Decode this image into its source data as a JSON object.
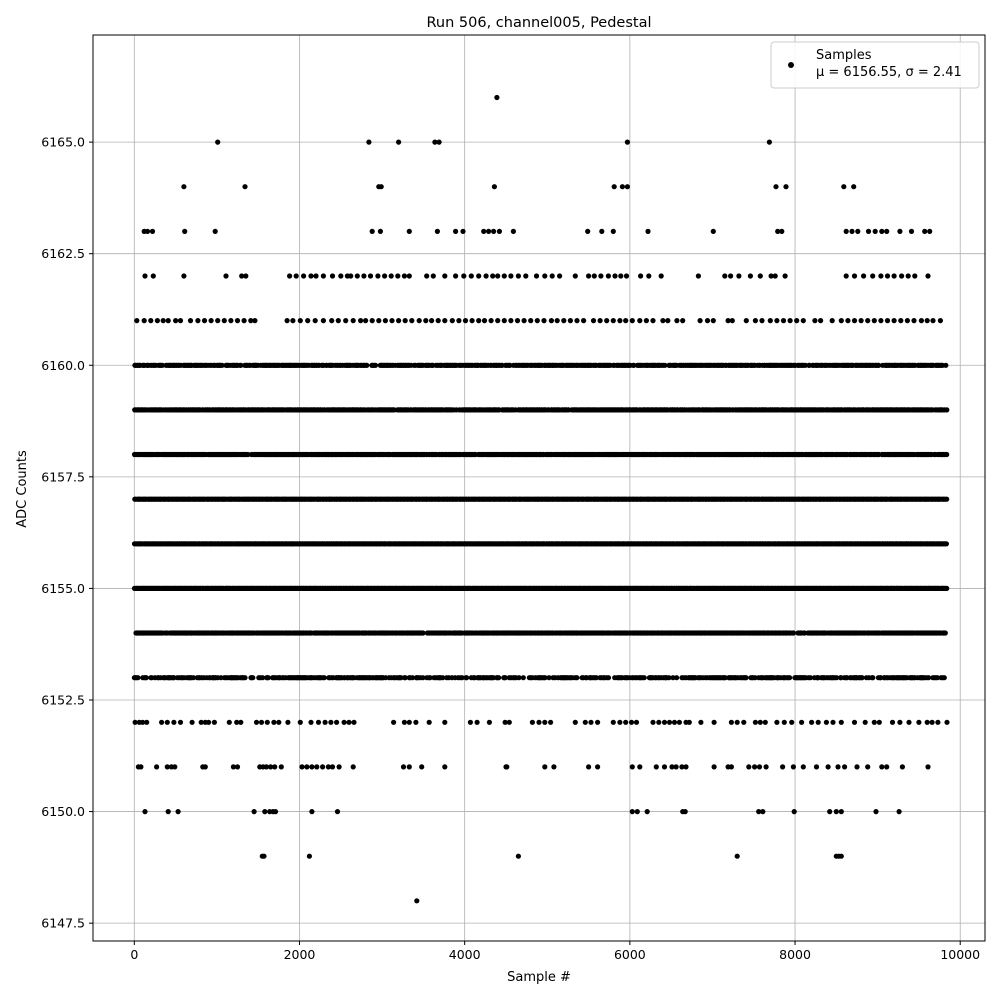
{
  "chart_data": {
    "type": "scatter",
    "title": "Run 506, channel005, Pedestal",
    "xlabel": "Sample #",
    "ylabel": "ADC Counts",
    "xlim": [
      -500,
      10300
    ],
    "ylim": [
      6147.1,
      6167.4
    ],
    "x_ticks": [
      0,
      2000,
      4000,
      6000,
      8000,
      10000
    ],
    "y_ticks": [
      6147.5,
      6150.0,
      6152.5,
      6155.0,
      6157.5,
      6160.0,
      6162.5,
      6165.0
    ],
    "grid": true,
    "legend": {
      "placement": "top-right",
      "label": "Samples",
      "stats": "μ = 6156.55, σ = 2.41"
    },
    "series": [
      {
        "name": "Samples",
        "color": "#000000",
        "n_samples": 9840,
        "levels": [
          {
            "y": 6147.999999,
            "x": [
              3420
            ]
          },
          {
            "y": 6149,
            "x": [
              1550,
              1570,
              2120,
              4650,
              7300,
              8500,
              8530,
              8560
            ]
          },
          {
            "y": 6150,
            "x": [
              130,
              410,
              530,
              1450,
              1580,
              1640,
              1680,
              1710,
              2150,
              2460,
              6030,
              6090,
              6210,
              6640,
              6670,
              7560,
              7610,
              7990,
              8420,
              8500,
              8560,
              8980,
              9260
            ]
          },
          {
            "y": 6151,
            "x": [
              50,
              80,
              270,
              400,
              450,
              490,
              830,
              860,
              1200,
              1250,
              1520,
              1560,
              1600,
              1650,
              1700,
              1780,
              2030,
              2090,
              2150,
              2210,
              2280,
              2350,
              2400,
              2480,
              2650,
              3260,
              3330,
              3480,
              3760,
              4500,
              4510,
              4970,
              5080,
              5500,
              5610,
              6030,
              6120,
              6320,
              6420,
              6510,
              6560,
              6630,
              6680,
              7020,
              7190,
              7230,
              7440,
              7510,
              7570,
              7650,
              7850,
              7980,
              8100,
              8260,
              8400,
              8520,
              8600,
              8750,
              8880,
              9050,
              9110,
              9300,
              9610
            ]
          },
          {
            "y": 6152,
            "x": [
              10,
              60,
              100,
              150,
              330,
              400,
              480,
              560,
              700,
              810,
              860,
              900,
              970,
              1150,
              1240,
              1290,
              1480,
              1540,
              1610,
              1690,
              1750,
              1860,
              2010,
              2140,
              2230,
              2310,
              2380,
              2450,
              2540,
              2600,
              2660,
              3140,
              3270,
              3330,
              3410,
              3570,
              3760,
              4070,
              4150,
              4300,
              4490,
              4540,
              4820,
              4900,
              4970,
              5040,
              5340,
              5460,
              5530,
              5610,
              5800,
              5880,
              5950,
              6020,
              6080,
              6280,
              6350,
              6420,
              6480,
              6540,
              6600,
              6680,
              6720,
              6860,
              7020,
              7230,
              7300,
              7380,
              7520,
              7580,
              7640,
              7780,
              7870,
              7960,
              8080,
              8200,
              8280,
              8380,
              8460,
              8560,
              8720,
              8850,
              8960,
              9020,
              9180,
              9270,
              9380,
              9500,
              9600,
              9660,
              9730,
              9840
            ]
          },
          {
            "y": 6161,
            "x": [
              30,
              120,
              200,
              280,
              350,
              410,
              500,
              560,
              680,
              770,
              850,
              930,
              1010,
              1090,
              1170,
              1250,
              1330,
              1410,
              1460,
              1850,
              1920,
              2010,
              2100,
              2190,
              2290,
              2390,
              2470,
              2560,
              2650,
              2740,
              2800,
              2880,
              2960,
              3040,
              3120,
              3200,
              3280,
              3360,
              3450,
              3530,
              3600,
              3680,
              3760,
              3850,
              3930,
              4010,
              4090,
              4170,
              4240,
              4320,
              4400,
              4480,
              4560,
              4640,
              4720,
              4800,
              4880,
              4960,
              5050,
              5120,
              5200,
              5280,
              5360,
              5440,
              5560,
              5640,
              5720,
              5800,
              5880,
              5950,
              6030,
              6120,
              6200,
              6280,
              6400,
              6460,
              6570,
              6640,
              6850,
              6940,
              7010,
              7190,
              7240,
              7410,
              7520,
              7600,
              7700,
              7780,
              7860,
              7940,
              8020,
              8100,
              8240,
              8310,
              8450,
              8560,
              8640,
              8720,
              8800,
              8880,
              8960,
              9040,
              9120,
              9200,
              9280,
              9360,
              9440,
              9530,
              9600,
              9670,
              9760
            ]
          },
          {
            "y": 6162,
            "x": [
              130,
              230,
              600,
              1110,
              1300,
              1350,
              1880,
              1960,
              2050,
              2140,
              2200,
              2290,
              2400,
              2500,
              2580,
              2620,
              2700,
              2780,
              2860,
              2950,
              3030,
              3110,
              3190,
              3270,
              3330,
              3540,
              3620,
              3760,
              3890,
              3990,
              4080,
              4170,
              4260,
              4340,
              4400,
              4480,
              4560,
              4650,
              4740,
              4870,
              4970,
              5060,
              5150,
              5340,
              5500,
              5570,
              5650,
              5740,
              5820,
              5890,
              5960,
              6130,
              6230,
              6380,
              6830,
              7150,
              7220,
              7320,
              7460,
              7580,
              7710,
              7760,
              7880,
              8620,
              8720,
              8830,
              8940,
              9040,
              9120,
              9200,
              9290,
              9370,
              9450,
              9610
            ]
          },
          {
            "y": 6163,
            "x": [
              120,
              160,
              220,
              610,
              980,
              2880,
              2980,
              3330,
              3670,
              3890,
              3980,
              4230,
              4290,
              4350,
              4420,
              4590,
              5490,
              5660,
              5800,
              6220,
              7010,
              7790,
              7840,
              8620,
              8690,
              8760,
              8890,
              8970,
              9050,
              9110,
              9270,
              9410,
              9570,
              9630
            ]
          },
          {
            "y": 6164,
            "x": [
              600,
              1340,
              2960,
              2990,
              4360,
              5810,
              5910,
              5970,
              7770,
              7890,
              8590,
              8710
            ]
          },
          {
            "y": 6165,
            "x": [
              1010,
              2840,
              3200,
              3640,
              3690,
              5970,
              7690
            ]
          },
          {
            "y": 6166,
            "x": [
              4390
            ]
          }
        ],
        "dense_levels": [
          {
            "y": 6153,
            "density": 0.55
          },
          {
            "y": 6154,
            "density": 0.85
          },
          {
            "y": 6155,
            "density": 1.0
          },
          {
            "y": 6156,
            "density": 1.0
          },
          {
            "y": 6157,
            "density": 1.0
          },
          {
            "y": 6158,
            "density": 0.92
          },
          {
            "y": 6159,
            "density": 0.88
          },
          {
            "y": 6160,
            "density": 0.8
          }
        ]
      }
    ]
  }
}
